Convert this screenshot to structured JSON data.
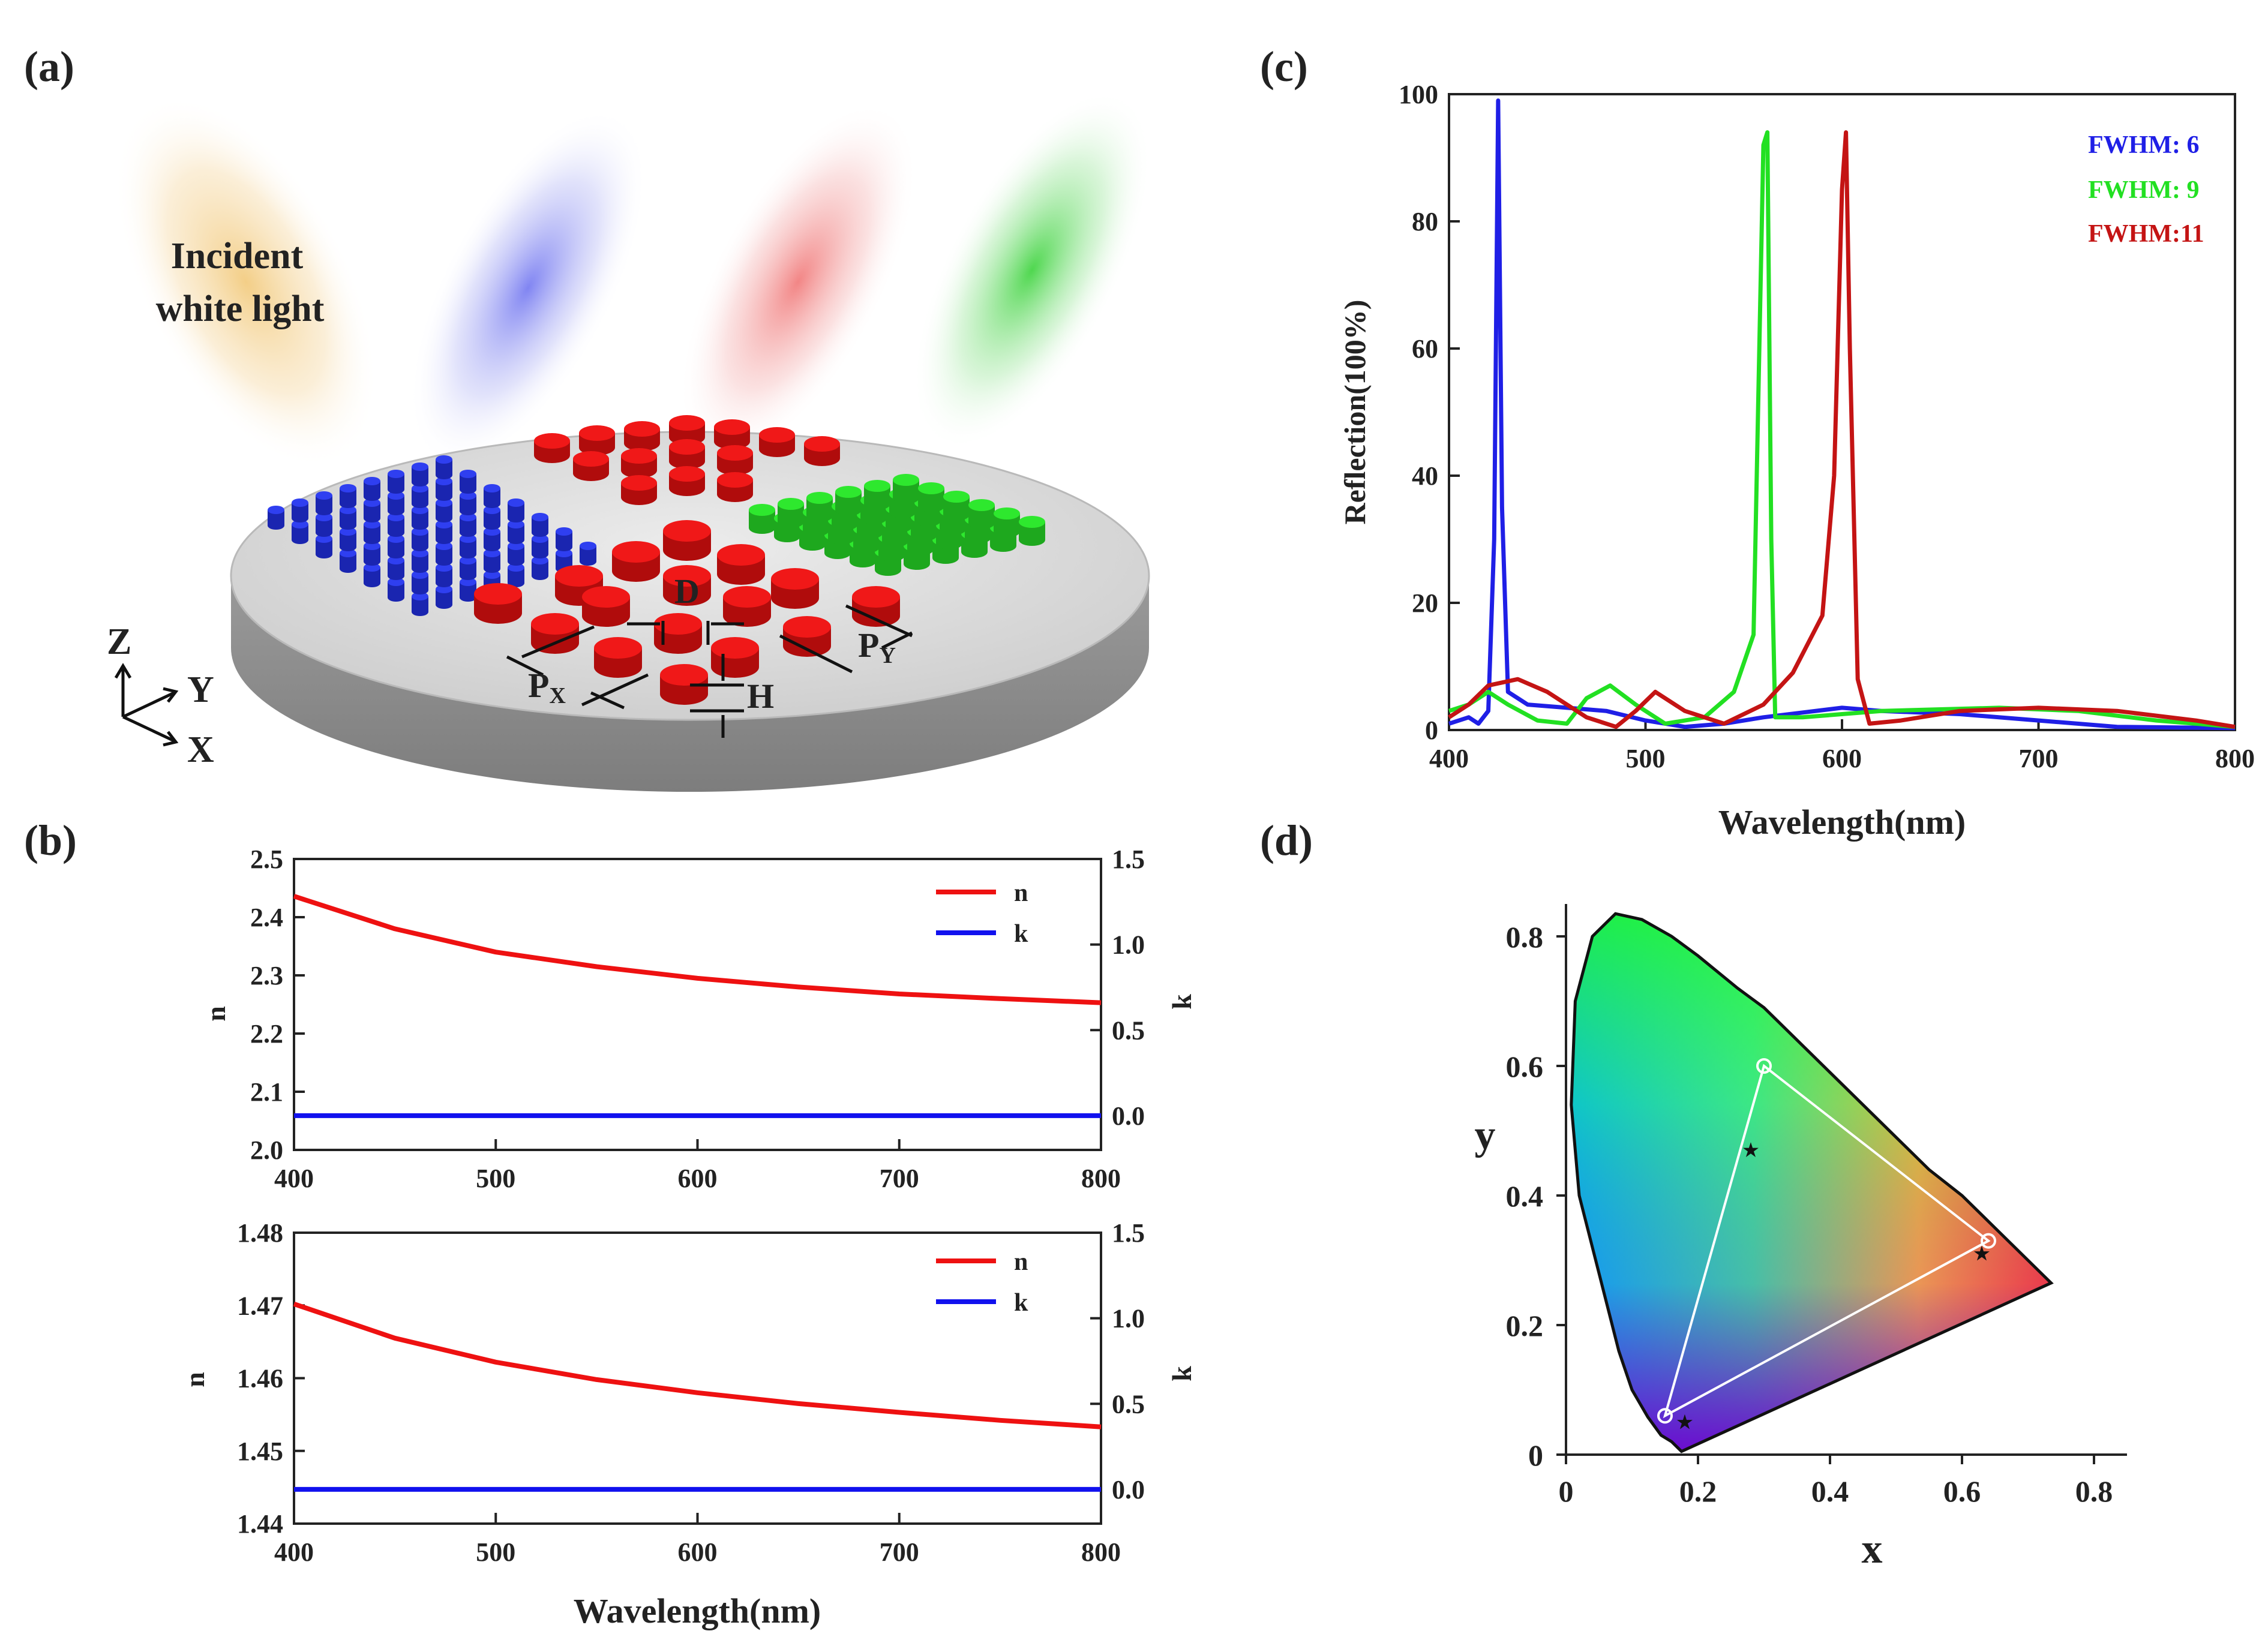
{
  "panels": {
    "a": {
      "label": "(a)",
      "incident_line1": "Incident",
      "incident_line2": "white light",
      "axis_z": "Z",
      "axis_y": "Y",
      "axis_x": "X",
      "dim_d": "D",
      "dim_px": "P",
      "dim_px_sub": "X",
      "dim_py": "P",
      "dim_py_sub": "Y",
      "dim_h": "H",
      "colors": {
        "blue": "#2f3ff0",
        "red": "#f01818",
        "green": "#2ee82e"
      }
    },
    "b": {
      "label": "(b)"
    },
    "c": {
      "label": "(c)"
    },
    "d": {
      "label": "(d)"
    }
  },
  "chart_data": [
    {
      "id": "c",
      "type": "line",
      "xlabel": "Wavelength(nm)",
      "ylabel": "Reflection(100%)",
      "xlim": [
        400,
        800
      ],
      "ylim": [
        0,
        100
      ],
      "xticks": [
        400,
        500,
        600,
        700,
        800
      ],
      "yticks": [
        0,
        20,
        40,
        60,
        80,
        100
      ],
      "legend_position": "top-right",
      "series": [
        {
          "name": "FWHM: 6",
          "color": "#1f1fe6",
          "points": [
            [
              400,
              1
            ],
            [
              410,
              2
            ],
            [
              415,
              1
            ],
            [
              420,
              3
            ],
            [
              423,
              30
            ],
            [
              425,
              99
            ],
            [
              427,
              35
            ],
            [
              430,
              6
            ],
            [
              440,
              4
            ],
            [
              460,
              3.5
            ],
            [
              480,
              3
            ],
            [
              500,
              1.5
            ],
            [
              520,
              0.5
            ],
            [
              540,
              1
            ],
            [
              560,
              2
            ],
            [
              600,
              3.5
            ],
            [
              620,
              3
            ],
            [
              660,
              2.5
            ],
            [
              700,
              1.5
            ],
            [
              740,
              0.5
            ],
            [
              800,
              0.3
            ]
          ]
        },
        {
          "name": "FWHM: 9",
          "color": "#22e022",
          "points": [
            [
              400,
              3
            ],
            [
              410,
              4
            ],
            [
              420,
              6
            ],
            [
              430,
              4
            ],
            [
              445,
              1.5
            ],
            [
              460,
              1
            ],
            [
              470,
              5
            ],
            [
              482,
              7
            ],
            [
              495,
              4
            ],
            [
              510,
              1
            ],
            [
              530,
              2
            ],
            [
              545,
              6
            ],
            [
              555,
              15
            ],
            [
              560,
              92
            ],
            [
              562,
              94
            ],
            [
              564,
              30
            ],
            [
              566,
              2
            ],
            [
              580,
              2
            ],
            [
              620,
              3
            ],
            [
              680,
              3.5
            ],
            [
              720,
              3
            ],
            [
              760,
              1.5
            ],
            [
              800,
              0.5
            ]
          ]
        },
        {
          "name": "FWHM:11",
          "color": "#c41414",
          "points": [
            [
              400,
              2
            ],
            [
              410,
              4
            ],
            [
              420,
              7
            ],
            [
              435,
              8
            ],
            [
              450,
              6
            ],
            [
              470,
              2
            ],
            [
              485,
              0.5
            ],
            [
              495,
              3
            ],
            [
              505,
              6
            ],
            [
              520,
              3
            ],
            [
              540,
              1
            ],
            [
              560,
              4
            ],
            [
              575,
              9
            ],
            [
              590,
              18
            ],
            [
              596,
              40
            ],
            [
              600,
              85
            ],
            [
              602,
              94
            ],
            [
              604,
              60
            ],
            [
              608,
              8
            ],
            [
              614,
              1
            ],
            [
              630,
              1.5
            ],
            [
              660,
              3
            ],
            [
              700,
              3.5
            ],
            [
              740,
              3
            ],
            [
              780,
              1.5
            ],
            [
              800,
              0.5
            ]
          ]
        }
      ]
    },
    {
      "id": "b1",
      "type": "line",
      "xlabel": "",
      "ylabel_left": "n",
      "ylabel_right": "k",
      "xlim": [
        400,
        800
      ],
      "ylim": [
        2.0,
        2.5
      ],
      "ylim_right": [
        -0.2,
        1.5
      ],
      "xticks": [
        400,
        500,
        600,
        700,
        800
      ],
      "yticks": [
        "2.0",
        "2.1",
        "2.2",
        "2.3",
        "2.4",
        "2.5"
      ],
      "yticks_right": [
        "0.0",
        "0.5",
        "1.0",
        "1.5"
      ],
      "legend_position": "top-right",
      "series": [
        {
          "name": "n",
          "axis": "left",
          "color": "#ee1111",
          "points": [
            [
              400,
              2.436
            ],
            [
              450,
              2.38
            ],
            [
              500,
              2.34
            ],
            [
              550,
              2.315
            ],
            [
              600,
              2.295
            ],
            [
              650,
              2.28
            ],
            [
              700,
              2.268
            ],
            [
              750,
              2.26
            ],
            [
              800,
              2.253
            ]
          ]
        },
        {
          "name": "k",
          "axis": "right",
          "color": "#1111ee",
          "points": [
            [
              400,
              0.0
            ],
            [
              800,
              0.0
            ]
          ]
        }
      ]
    },
    {
      "id": "b2",
      "type": "line",
      "xlabel": "Wavelength(nm)",
      "ylabel_left": "n",
      "ylabel_right": "k",
      "xlim": [
        400,
        800
      ],
      "ylim": [
        1.44,
        1.48
      ],
      "ylim_right": [
        -0.2,
        1.5
      ],
      "xticks": [
        400,
        500,
        600,
        700,
        800
      ],
      "yticks": [
        "1.44",
        "1.45",
        "1.46",
        "1.47",
        "1.48"
      ],
      "yticks_right": [
        "0.0",
        "0.5",
        "1.0",
        "1.5"
      ],
      "legend_position": "top-right",
      "series": [
        {
          "name": "n",
          "axis": "left",
          "color": "#ee1111",
          "points": [
            [
              400,
              1.4702
            ],
            [
              450,
              1.4655
            ],
            [
              500,
              1.4622
            ],
            [
              550,
              1.4598
            ],
            [
              600,
              1.458
            ],
            [
              650,
              1.4565
            ],
            [
              700,
              1.4553
            ],
            [
              750,
              1.4542
            ],
            [
              800,
              1.4533
            ]
          ]
        },
        {
          "name": "k",
          "axis": "right",
          "color": "#1111ee",
          "points": [
            [
              400,
              0.0
            ],
            [
              800,
              0.0
            ]
          ]
        }
      ]
    },
    {
      "id": "d",
      "type": "scatter",
      "xlabel": "x",
      "ylabel": "y",
      "xlim": [
        0,
        0.85
      ],
      "ylim": [
        0,
        0.85
      ],
      "xticks": [
        "0",
        "0.2",
        "0.4",
        "0.6",
        "0.8"
      ],
      "yticks": [
        "0",
        "0.2",
        "0.4",
        "0.6",
        "0.8"
      ],
      "locus": [
        [
          0.175,
          0.005
        ],
        [
          0.17,
          0.01
        ],
        [
          0.16,
          0.02
        ],
        [
          0.144,
          0.03
        ],
        [
          0.124,
          0.058
        ],
        [
          0.1,
          0.1
        ],
        [
          0.08,
          0.16
        ],
        [
          0.065,
          0.22
        ],
        [
          0.045,
          0.3
        ],
        [
          0.02,
          0.4
        ],
        [
          0.008,
          0.54
        ],
        [
          0.014,
          0.7
        ],
        [
          0.04,
          0.8
        ],
        [
          0.075,
          0.835
        ],
        [
          0.115,
          0.826
        ],
        [
          0.16,
          0.8
        ],
        [
          0.2,
          0.77
        ],
        [
          0.26,
          0.72
        ],
        [
          0.3,
          0.69
        ],
        [
          0.35,
          0.64
        ],
        [
          0.4,
          0.59
        ],
        [
          0.45,
          0.54
        ],
        [
          0.5,
          0.49
        ],
        [
          0.55,
          0.44
        ],
        [
          0.6,
          0.4
        ],
        [
          0.65,
          0.35
        ],
        [
          0.7,
          0.3
        ],
        [
          0.735,
          0.265
        ]
      ],
      "triangle": [
        [
          0.3,
          0.6
        ],
        [
          0.64,
          0.33
        ],
        [
          0.15,
          0.06
        ]
      ],
      "stars": [
        [
          0.28,
          0.47
        ],
        [
          0.63,
          0.31
        ],
        [
          0.18,
          0.05
        ]
      ]
    }
  ]
}
